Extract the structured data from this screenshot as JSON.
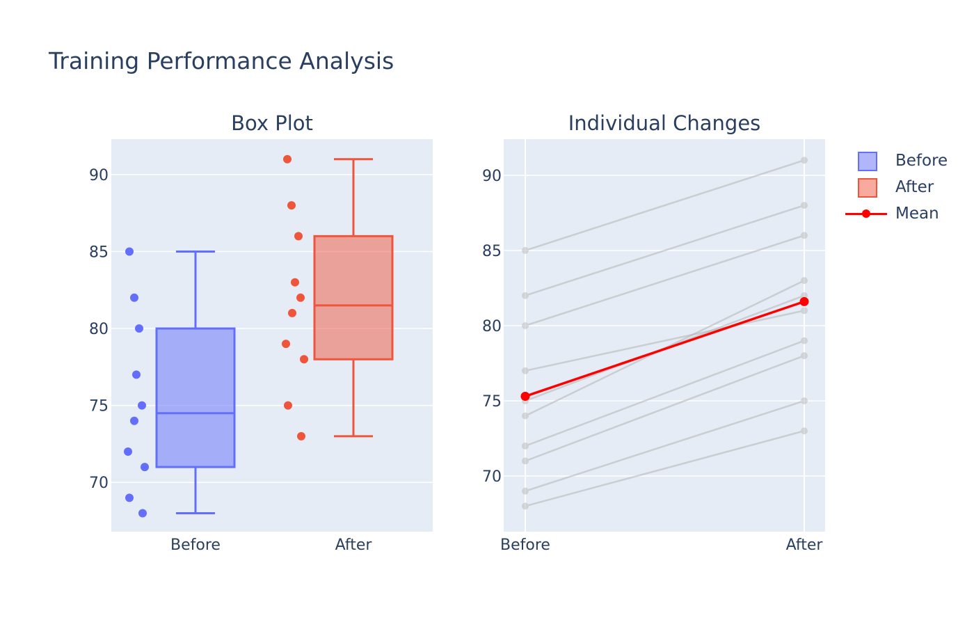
{
  "title": "Training Performance Analysis",
  "subplots": {
    "left_title": "Box Plot",
    "right_title": "Individual Changes"
  },
  "legend": {
    "items": [
      {
        "label": "Before",
        "type": "box",
        "color": "#636efa"
      },
      {
        "label": "After",
        "type": "box",
        "color": "#ef553b"
      },
      {
        "label": "Mean",
        "type": "line",
        "color": "#ff0000"
      }
    ]
  },
  "colors": {
    "before": "#636efa",
    "after": "#ef553b",
    "mean": "#ff0000",
    "individual": "#c8c8c8",
    "plot_bg": "#e5ecf6",
    "grid": "#ffffff",
    "text": "#2a3f5f"
  },
  "chart_data": [
    {
      "type": "box",
      "title": "Box Plot",
      "categories": [
        "Before",
        "After"
      ],
      "yticks": [
        70,
        75,
        80,
        85,
        90
      ],
      "ylim": [
        66.8,
        92.3
      ],
      "series": [
        {
          "name": "Before",
          "values": [
            85,
            82,
            80,
            77,
            75,
            74,
            72,
            71,
            69,
            68
          ],
          "stats": {
            "min": 68,
            "q1": 71,
            "median": 74.5,
            "q3": 80,
            "max": 85
          },
          "boxpoints": "all"
        },
        {
          "name": "After",
          "values": [
            91,
            88,
            86,
            83,
            82,
            81,
            79,
            78,
            75,
            73
          ],
          "stats": {
            "min": 73,
            "q1": 78,
            "median": 81.5,
            "q3": 86,
            "max": 91
          },
          "boxpoints": "all"
        }
      ]
    },
    {
      "type": "line",
      "title": "Individual Changes",
      "categories": [
        "Before",
        "After"
      ],
      "yticks": [
        70,
        75,
        80,
        85,
        90
      ],
      "ylim": [
        66.3,
        92.4
      ],
      "individuals": [
        {
          "before": 85,
          "after": 91
        },
        {
          "before": 82,
          "after": 88
        },
        {
          "before": 80,
          "after": 86
        },
        {
          "before": 77,
          "after": 81
        },
        {
          "before": 75,
          "after": 82
        },
        {
          "before": 74,
          "after": 83
        },
        {
          "before": 72,
          "after": 79
        },
        {
          "before": 71,
          "after": 78
        },
        {
          "before": 69,
          "after": 75
        },
        {
          "before": 68,
          "after": 73
        }
      ],
      "series": [
        {
          "name": "Mean",
          "values": [
            75.3,
            81.6
          ]
        }
      ]
    }
  ]
}
